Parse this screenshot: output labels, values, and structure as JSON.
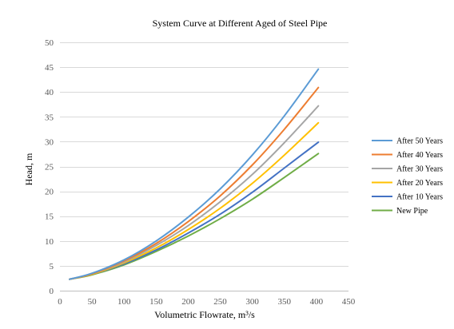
{
  "chart_data": {
    "type": "line",
    "title": "System Curve at Different Aged of Steel Pipe",
    "xlabel": "Volumetric Flowrate, m³/s",
    "ylabel": "Head, m",
    "xlim": [
      0,
      450
    ],
    "ylim": [
      0,
      50
    ],
    "xticks": [
      0,
      50,
      100,
      150,
      200,
      250,
      300,
      350,
      400,
      450
    ],
    "yticks": [
      0,
      5,
      10,
      15,
      20,
      25,
      30,
      35,
      40,
      45,
      50
    ],
    "grid": "horizontal",
    "legend_position": "right",
    "x": [
      15,
      50,
      100,
      150,
      200,
      250,
      300,
      350,
      403
    ],
    "series": [
      {
        "name": "After 50 Years",
        "color": "#5b9bd5",
        "values": [
          2.3,
          3.5,
          6.2,
          10.0,
          14.8,
          20.5,
          27.3,
          35.2,
          44.6
        ]
      },
      {
        "name": "After 40 Years",
        "color": "#ed7d31",
        "values": [
          2.3,
          3.4,
          6.0,
          9.5,
          13.9,
          19.1,
          25.3,
          32.5,
          40.9
        ]
      },
      {
        "name": "After 30 Years",
        "color": "#a5a5a5",
        "values": [
          2.3,
          3.4,
          5.8,
          9.1,
          13.1,
          17.9,
          23.4,
          29.8,
          37.2
        ]
      },
      {
        "name": "After 20 Years",
        "color": "#ffc000",
        "values": [
          2.3,
          3.3,
          5.6,
          8.6,
          12.3,
          16.6,
          21.6,
          27.3,
          33.8
        ]
      },
      {
        "name": "After 10 Years",
        "color": "#4472c4",
        "values": [
          2.3,
          3.3,
          5.4,
          8.2,
          11.6,
          15.4,
          19.8,
          24.7,
          29.9
        ]
      },
      {
        "name": "New Pipe",
        "color": "#70ad47",
        "values": [
          2.3,
          3.2,
          5.2,
          7.9,
          11.0,
          14.5,
          18.4,
          22.8,
          27.6
        ]
      }
    ]
  }
}
